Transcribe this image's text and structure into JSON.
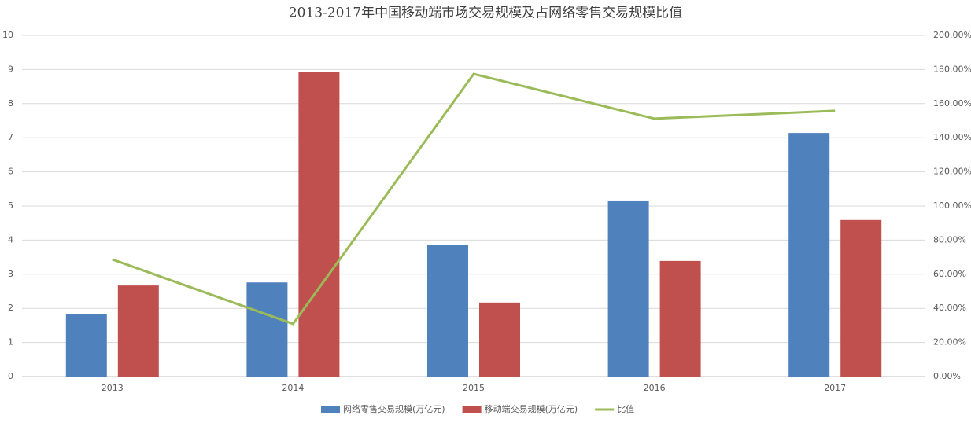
{
  "chart_data": {
    "type": "bar-line",
    "title": "2013-2017年中国移动端市场交易规模及占网络零售交易规模比值",
    "categories": [
      "2013",
      "2014",
      "2015",
      "2016",
      "2017"
    ],
    "series": [
      {
        "name": "网络零售交易规模(万亿元)",
        "color": "#4f81bd",
        "type": "bar",
        "values": [
          1.84,
          2.76,
          3.85,
          5.14,
          7.14
        ]
      },
      {
        "name": "移动端交易规模(万亿元)",
        "color": "#c0504d",
        "type": "bar",
        "values": [
          2.67,
          8.92,
          2.17,
          3.39,
          4.59
        ]
      },
      {
        "name": "比值",
        "color": "#9bbb59",
        "type": "line",
        "axis": "y2",
        "values": [
          68.7,
          30.9,
          177.4,
          151.2,
          155.8
        ]
      }
    ],
    "ylim": [
      0,
      10
    ],
    "yticks": [
      0,
      1,
      2,
      3,
      4,
      5,
      6,
      7,
      8,
      9,
      10
    ],
    "y2lim": [
      0,
      200
    ],
    "y2ticks": [
      {
        "value": 0,
        "label": "0.00%"
      },
      {
        "value": 20,
        "label": "20.00%"
      },
      {
        "value": 40,
        "label": "40.00%"
      },
      {
        "value": 60,
        "label": "60.00%"
      },
      {
        "value": 80,
        "label": "80.00%"
      },
      {
        "value": 100,
        "label": "100.00%"
      },
      {
        "value": 120,
        "label": "120.00%"
      },
      {
        "value": 140,
        "label": "140.00%"
      },
      {
        "value": 160,
        "label": "160.00%"
      },
      {
        "value": 180,
        "label": "180.00%"
      },
      {
        "value": 200,
        "label": "200.00%"
      }
    ],
    "grid": true,
    "legend": "bottom"
  }
}
